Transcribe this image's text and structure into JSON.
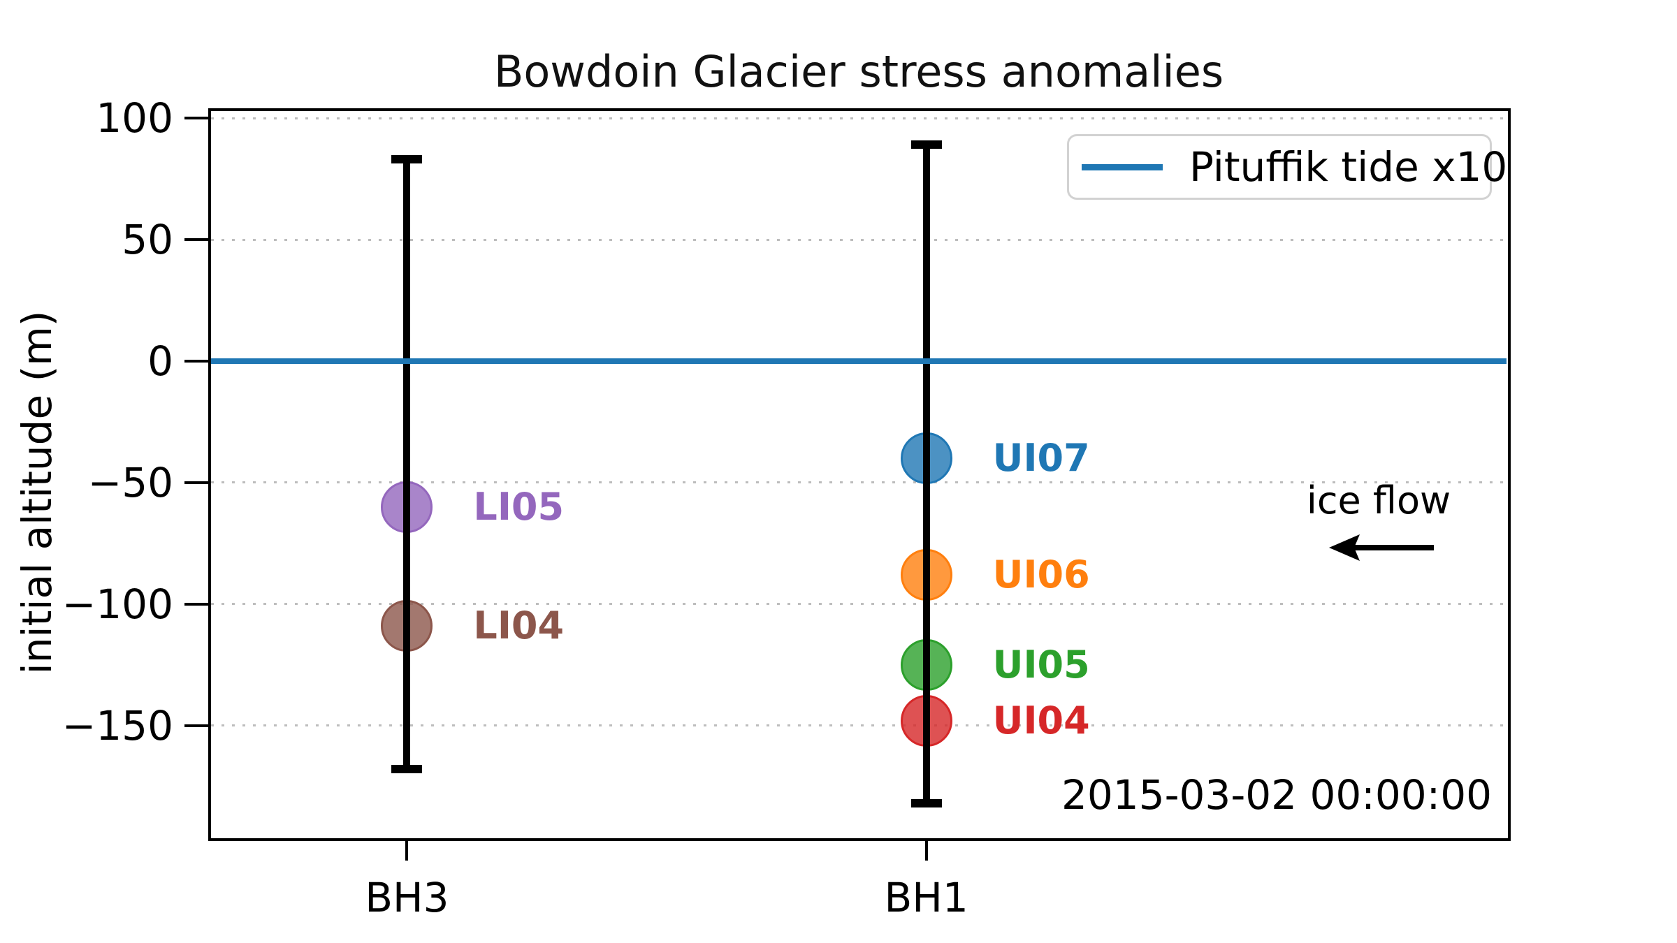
{
  "chart_data": {
    "type": "scatter",
    "title": "Bowdoin Glacier stress anomalies",
    "ylabel": "initial altitude (m)",
    "xlabel": "",
    "ylim": [
      -197,
      103.5
    ],
    "xlim": [
      -0.38,
      2.12
    ],
    "grid": {
      "axis": "y",
      "style": "dotted",
      "color": "#bdbdbd"
    },
    "legend_position": "upper right",
    "yticks": [
      {
        "value": 100,
        "label": "100"
      },
      {
        "value": 50,
        "label": "50"
      },
      {
        "value": 0,
        "label": "0"
      },
      {
        "value": -50,
        "label": "−50"
      },
      {
        "value": -100,
        "label": "−100"
      },
      {
        "value": -150,
        "label": "−150"
      }
    ],
    "categories": [
      {
        "x": 0,
        "label": "BH3"
      },
      {
        "x": 1,
        "label": "BH1"
      }
    ],
    "boreholes": [
      {
        "name": "BH3",
        "x": 0,
        "extent_m": [
          -168,
          83
        ],
        "sensors": [
          {
            "id": "LI05",
            "altitude_m": -60,
            "color": "#9467bd"
          },
          {
            "id": "LI04",
            "altitude_m": -109,
            "color": "#8c564b"
          }
        ]
      },
      {
        "name": "BH1",
        "x": 1,
        "extent_m": [
          -182,
          89
        ],
        "sensors": [
          {
            "id": "UI07",
            "altitude_m": -40,
            "color": "#1f77b4"
          },
          {
            "id": "UI06",
            "altitude_m": -88,
            "color": "#ff7f0e"
          },
          {
            "id": "UI05",
            "altitude_m": -125,
            "color": "#2ca02c"
          },
          {
            "id": "UI04",
            "altitude_m": -148,
            "color": "#d62728"
          }
        ]
      }
    ],
    "tide_line": {
      "value_m": 0,
      "color": "#1f77b4",
      "legend_label": "Pituffik tide x10"
    },
    "annotations": {
      "ice_flow_label": "ice flow",
      "ice_flow_arrow_direction": "left",
      "timestamp": "2015-03-02 00:00:00"
    },
    "colors": {
      "axes": "#000000",
      "errorbar": "#000000",
      "grid": "#bdbdbd",
      "tide": "#1f77b4"
    }
  }
}
